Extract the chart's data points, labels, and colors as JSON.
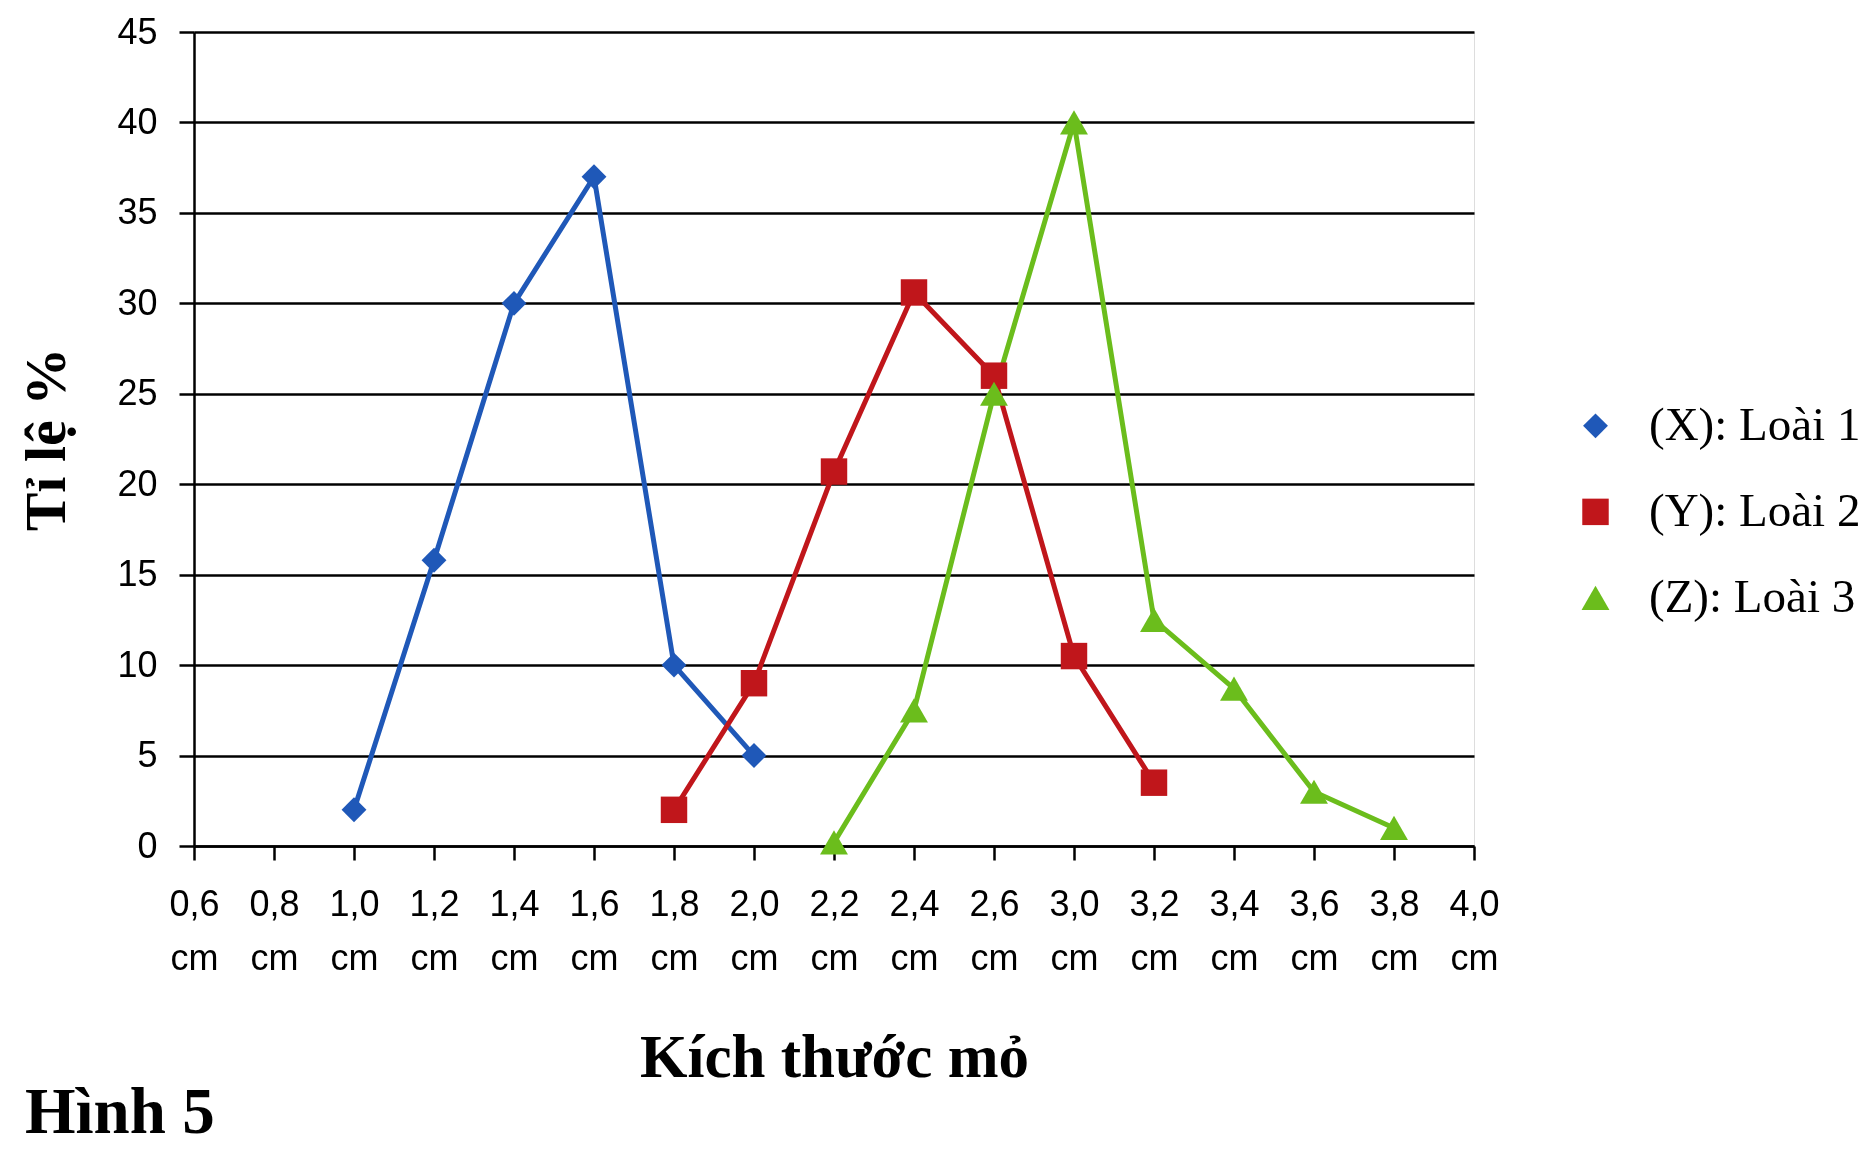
{
  "chart_data": {
    "type": "line",
    "xlabel": "Kích thước mỏ",
    "ylabel": "Tỉ lệ %",
    "annotations": [
      "Hình 5"
    ],
    "categories": [
      "0,6 cm",
      "0,8 cm",
      "1,0 cm",
      "1,2 cm",
      "1,4 cm",
      "1,6 cm",
      "1,8 cm",
      "2,0 cm",
      "2,2 cm",
      "2,4 cm",
      "2,6 cm",
      "3,0 cm",
      "3,2 cm",
      "3,4 cm",
      "3,6 cm",
      "3,8 cm",
      "4,0 cm"
    ],
    "series": [
      {
        "name": "(X): Loài 1",
        "color": "#1f58b8",
        "marker": "diamond",
        "values": [
          null,
          null,
          2,
          15.8,
          30,
          37,
          10,
          5,
          null,
          null,
          null,
          null,
          null,
          null,
          null,
          null,
          null
        ]
      },
      {
        "name": "(Y): Loài 2",
        "color": "#c0161b",
        "marker": "square",
        "values": [
          null,
          null,
          null,
          null,
          null,
          null,
          2,
          9,
          20.7,
          30.6,
          26,
          10.5,
          3.5,
          null,
          null,
          null,
          null
        ]
      },
      {
        "name": "(Z): Loài 3",
        "color": "#6bbd1c",
        "marker": "triangle",
        "values": [
          null,
          null,
          null,
          null,
          null,
          null,
          null,
          null,
          0.2,
          7.5,
          25,
          40,
          12.5,
          8.7,
          3,
          1,
          null
        ]
      }
    ],
    "ylim": [
      0,
      45
    ],
    "yticks": [
      0,
      5,
      10,
      15,
      20,
      25,
      30,
      35,
      40,
      45
    ],
    "grid": "y",
    "legend": "right",
    "line_style": "solid"
  }
}
